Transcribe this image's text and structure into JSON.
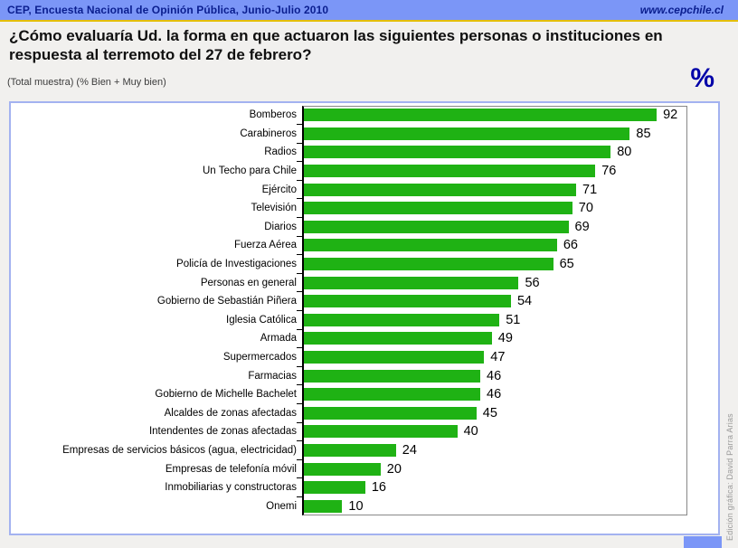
{
  "header": {
    "left": "CEP, Encuesta Nacional de Opinión Pública, Junio-Julio 2010",
    "right": "www.cepchile.cl"
  },
  "title": "¿Cómo evaluaría Ud. la forma en que actuaron las siguientes personas o instituciones en respuesta al terremoto del 27 de febrero?",
  "subtitle": "(Total muestra) (% Bien + Muy bien)",
  "unit_symbol": "%",
  "credit": "Edición gráfica: David Parra Arias",
  "colors": {
    "bar": "#1fb214",
    "header_bg": "#7b96f7",
    "header_text": "#0a1e8f",
    "gold_line": "#e3be00",
    "percent_symbol": "#0000a8"
  },
  "chart_data": {
    "type": "bar",
    "orientation": "horizontal",
    "title": "¿Cómo evaluaría Ud. la forma en que actuaron las siguientes personas o instituciones en respuesta al terremoto del 27 de febrero?",
    "subtitle": "(Total muestra) (% Bien + Muy bien)",
    "unit": "%",
    "xlim": [
      0,
      100
    ],
    "grid": false,
    "legend": false,
    "data_labels": true,
    "categories": [
      "Bomberos",
      "Carabineros",
      "Radios",
      "Un Techo para Chile",
      "Ejército",
      "Televisión",
      "Diarios",
      "Fuerza Aérea",
      "Policía de Investigaciones",
      "Personas en general",
      "Gobierno de Sebastián Piñera",
      "Iglesia Católica",
      "Armada",
      "Supermercados",
      "Farmacias",
      "Gobierno de Michelle Bachelet",
      "Alcaldes de zonas afectadas",
      "Intendentes de zonas afectadas",
      "Empresas de servicios básicos (agua, electricidad)",
      "Empresas de telefonía móvil",
      "Inmobiliarias y constructoras",
      "Onemi"
    ],
    "values": [
      92,
      85,
      80,
      76,
      71,
      70,
      69,
      66,
      65,
      56,
      54,
      51,
      49,
      47,
      46,
      46,
      45,
      40,
      24,
      20,
      16,
      10
    ]
  }
}
